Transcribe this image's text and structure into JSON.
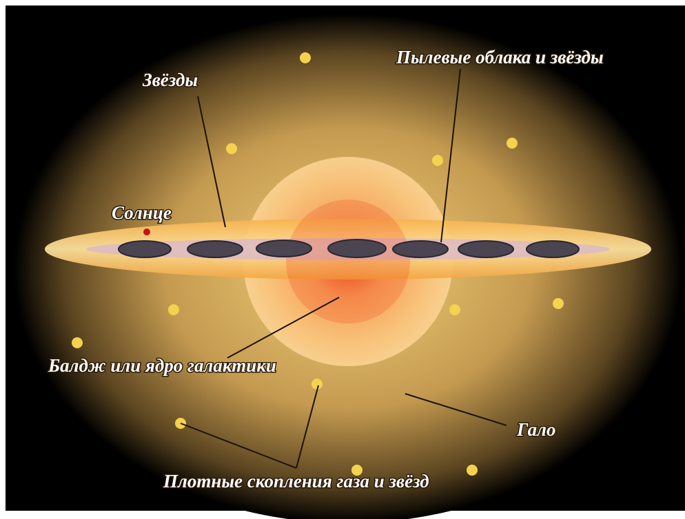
{
  "labels": {
    "stars": "Звёзды",
    "dust": "Пылевые облака и звёзды",
    "sun": "Солнце",
    "bulge": "Балдж или ядро галактики",
    "halo": "Гало",
    "clusters": "Плотные скопления газа и звёзд"
  }
}
